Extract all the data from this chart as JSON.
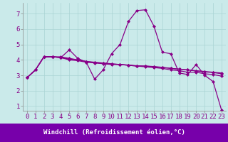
{
  "background_color": "#caeaea",
  "grid_color": "#aad4d4",
  "line_color": "#880088",
  "xlabel": "Windchill (Refroidissement éolien,°C)",
  "xlim": [
    -0.5,
    23.5
  ],
  "ylim": [
    0.7,
    7.7
  ],
  "yticks": [
    1,
    2,
    3,
    4,
    5,
    6,
    7
  ],
  "xticks": [
    0,
    1,
    2,
    3,
    4,
    5,
    6,
    7,
    8,
    9,
    10,
    11,
    12,
    13,
    14,
    15,
    16,
    17,
    18,
    19,
    20,
    21,
    22,
    23
  ],
  "series": [
    [
      2.85,
      3.35,
      4.2,
      4.2,
      4.15,
      4.65,
      4.1,
      3.85,
      2.75,
      3.35,
      4.4,
      5.0,
      6.5,
      7.2,
      7.25,
      6.2,
      4.5,
      4.4,
      3.15,
      3.05,
      3.7,
      3.0,
      2.6,
      0.75
    ],
    [
      2.85,
      3.35,
      4.2,
      4.2,
      4.2,
      4.1,
      4.0,
      3.9,
      3.85,
      3.8,
      3.75,
      3.7,
      3.65,
      3.6,
      3.6,
      3.55,
      3.5,
      3.45,
      3.4,
      3.35,
      3.3,
      3.25,
      3.2,
      3.15
    ],
    [
      2.85,
      3.35,
      4.2,
      4.2,
      4.15,
      4.0,
      3.95,
      3.85,
      3.8,
      3.75,
      3.7,
      3.7,
      3.65,
      3.6,
      3.55,
      3.5,
      3.45,
      3.35,
      3.3,
      3.2,
      3.2,
      3.1,
      3.05,
      2.95
    ],
    [
      2.85,
      3.35,
      4.2,
      4.2,
      4.15,
      4.05,
      4.0,
      3.9,
      3.82,
      3.78,
      3.73,
      3.7,
      3.67,
      3.62,
      3.6,
      3.57,
      3.52,
      3.45,
      3.4,
      3.35,
      3.28,
      3.22,
      3.18,
      3.1
    ]
  ],
  "xlabel_fontsize": 6.5,
  "tick_fontsize": 6.5,
  "marker": "D",
  "markersize": 2.0,
  "linewidth": 0.9,
  "xlabel_bg": "#7700aa",
  "xlabel_fg": "#ffffff"
}
